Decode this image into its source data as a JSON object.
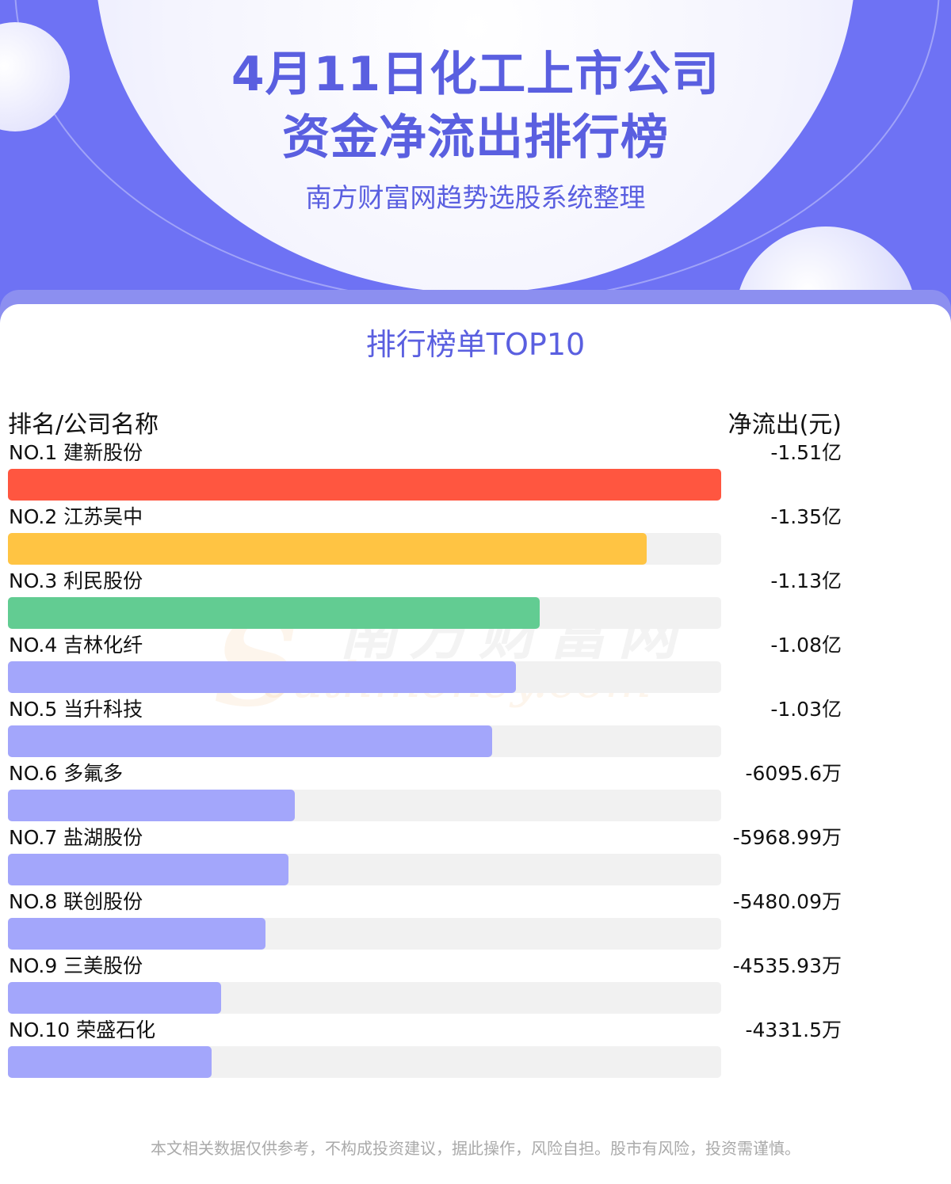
{
  "header": {
    "title_line1": "4月11日化工上市公司",
    "title_line2": "资金净流出排行榜",
    "subtitle": "南方财富网趋势选股系统整理"
  },
  "section_title": "排行榜单TOP10",
  "watermark": {
    "cn": "南方财富网",
    "en": "outhmoney.com",
    "s": "S"
  },
  "colors": {
    "brand": "#5a5fe0",
    "rank1": "#ff5640",
    "rank2": "#ffc443",
    "rank3": "#62cc92",
    "other": "#a3a6fb",
    "track": "#f1f1f1"
  },
  "chart_data": {
    "type": "bar",
    "orientation": "horizontal",
    "title": "4月11日化工上市公司资金净流出排行榜",
    "subtitle": "南方财富网趋势选股系统整理",
    "xlabel": "净流出(元)",
    "ylabel": "排名/公司名称",
    "columns": {
      "left": "排名/公司名称",
      "right": "净流出(元)"
    },
    "categories": [
      "NO.1 建新股份",
      "NO.2 江苏吴中",
      "NO.3 利民股份",
      "NO.4 吉林化纤",
      "NO.5 当升科技",
      "NO.6 多氟多",
      "NO.7 盐湖股份",
      "NO.8 联创股份",
      "NO.9 三美股份",
      "NO.10 荣盛石化"
    ],
    "value_labels": [
      "-1.51亿",
      "-1.35亿",
      "-1.13亿",
      "-1.08亿",
      "-1.03亿",
      "-6095.6万",
      "-5968.99万",
      "-5480.09万",
      "-4535.93万",
      "-4331.5万"
    ],
    "values": [
      -151000000,
      -135000000,
      -113000000,
      -108000000,
      -103000000,
      -60956000,
      -59689900,
      -54800900,
      -45359300,
      -43315000
    ],
    "bar_fractions": [
      1.0,
      0.895,
      0.746,
      0.712,
      0.679,
      0.402,
      0.393,
      0.361,
      0.299,
      0.286
    ]
  },
  "disclaimer": "本文相关数据仅供参考，不构成投资建议，据此操作，风险自担。股市有风险，投资需谨慎。"
}
